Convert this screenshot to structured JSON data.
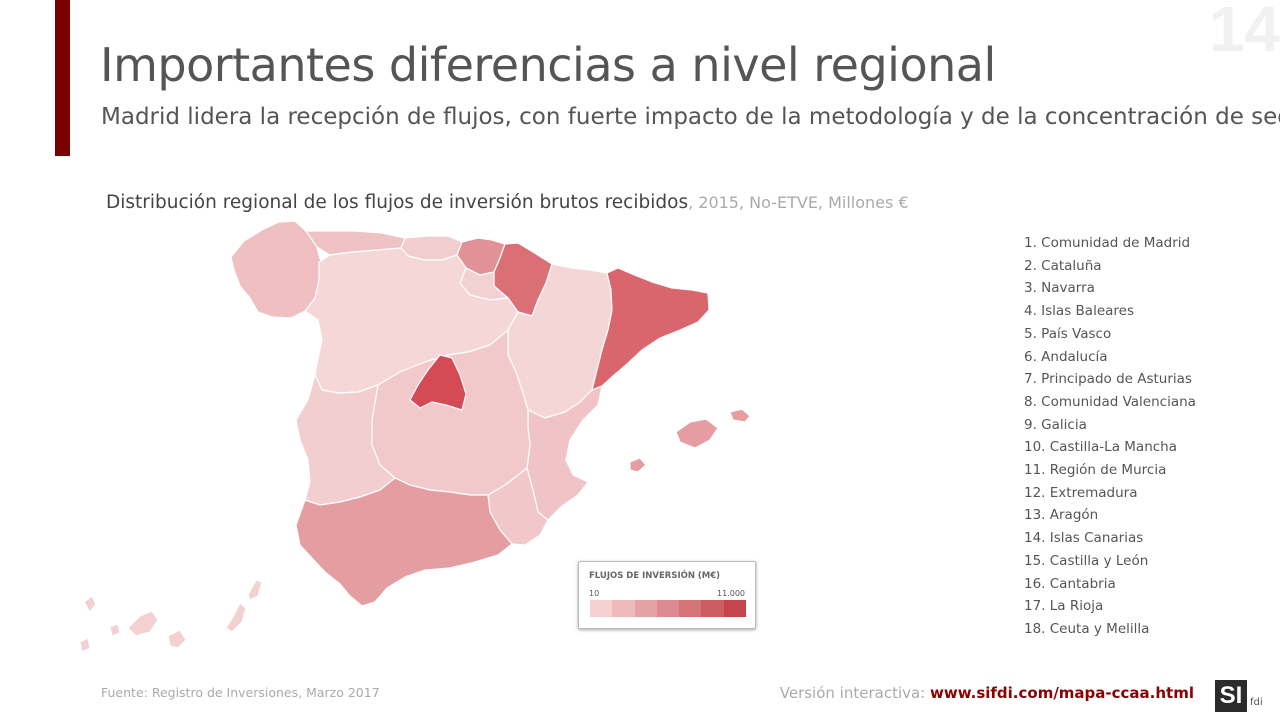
{
  "slide": {
    "page_number": "14",
    "title": "Importantes diferencias a nivel regional",
    "subtitle": "Madrid lidera la recepción de flujos, con fuerte impacto de la metodología y de la concentración de sedes"
  },
  "chart": {
    "title": "Distribución regional de los flujos de inversión brutos recibidos",
    "meta": ", 2015, No-ETVE, Millones €"
  },
  "legend": {
    "title": "FLUJOS DE INVERSIÓN (M€)",
    "min": "10",
    "max": "11.000",
    "colors": [
      "#f5d0d1",
      "#edb9bb",
      "#e5a2a5",
      "#dd8b8f",
      "#d57479",
      "#cd5d63",
      "#c5454c"
    ]
  },
  "regions": [
    "1. Comunidad de Madrid",
    "2. Cataluña",
    "3. Navarra",
    "4. Islas Baleares",
    "5. País Vasco",
    "6. Andalucía",
    "7. Principado de Asturias",
    "8. Comunidad Valenciana",
    "9. Galicia",
    "10. Castilla-La Mancha",
    "11. Región de Murcia",
    "12. Extremadura",
    "13. Aragón",
    "14. Islas Canarias",
    "15. Castilla y León",
    "16. Cantabria",
    "17. La Rioja",
    "18. Ceuta y Melilla"
  ],
  "map_colors": {
    "madrid": "#d44b55",
    "cataluna": "#d9666d",
    "navarra": "#db6f76",
    "pais_vasco": "#e19297",
    "baleares": "#e59da1",
    "andalucia": "#e49ea2",
    "asturias": "#efc2c4",
    "valenciana": "#f0c4c6",
    "galicia": "#efbfc2",
    "castilla_la_mancha": "#f1c9cb",
    "murcia": "#f1c7c9",
    "extremadura": "#f3ced0",
    "aragon": "#f5d6d7",
    "canarias": "#f3d0d2",
    "castilla_leon": "#f5d7d8",
    "cantabria": "#f2cdcf",
    "la_rioja": "#f3d1d3"
  },
  "footer": {
    "source": "Fuente: Registro de Inversiones, Marzo 2017",
    "link_label": "Versión interactiva: ",
    "link_url": "www.sifdi.com/mapa-ccaa.html",
    "logo_text": "SI",
    "logo_sub": "fdi"
  }
}
